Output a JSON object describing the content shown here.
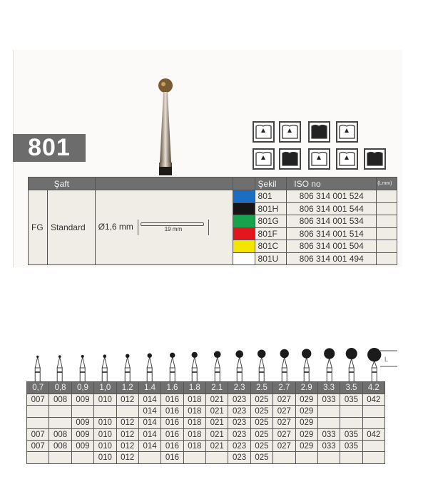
{
  "product_code": "801",
  "colors": {
    "panel_header": "#6f6f6f",
    "cell_bg": "#f0ede7"
  },
  "icons": [
    "cavity-preparation-icon",
    "orthodontic-bracket-icon",
    "root-canal-icon",
    "crown-prep-icon",
    "occlusal-fissure-icon",
    "crown-icon",
    "surgical-instrument-icon",
    "bridge-icon",
    "implant-icon"
  ],
  "spec_table": {
    "header": {
      "shaft": "Şaft",
      "shape": "Şekil",
      "iso": "ISO no",
      "length": "(Lmm)"
    },
    "shank_type": "FG",
    "shank_length_type": "Standard",
    "diameter": "Ø1,6 mm",
    "length": "19 mm",
    "rows": [
      {
        "color": "#1a6fc4",
        "shape": "801",
        "iso": "806 314 001 524"
      },
      {
        "color": "#151515",
        "shape": "801H",
        "iso": "806 314 001 544"
      },
      {
        "color": "#17a34a",
        "shape": "801G",
        "iso": "806 314 001 534"
      },
      {
        "color": "#e3161d",
        "shape": "801F",
        "iso": "806 314 001 514"
      },
      {
        "color": "#f2e600",
        "shape": "801C",
        "iso": "806 314 001 504"
      },
      {
        "color": "#ffffff",
        "shape": "801U",
        "iso": "806 314 001 494"
      }
    ]
  },
  "size_table": {
    "l_label": "L",
    "sizes": [
      "0,7",
      "0,8",
      "0,9",
      "1,0",
      "1.2",
      "1.4",
      "1.6",
      "1.8",
      "2.1",
      "2.3",
      "2.5",
      "2.7",
      "2.9",
      "3.3",
      "3.5",
      "4.2"
    ],
    "rows": [
      [
        "007",
        "008",
        "009",
        "010",
        "012",
        "014",
        "016",
        "018",
        "021",
        "023",
        "025",
        "027",
        "029",
        "033",
        "035",
        "042"
      ],
      [
        "",
        "",
        "",
        "",
        "",
        "014",
        "016",
        "018",
        "021",
        "023",
        "025",
        "027",
        "029",
        "",
        "",
        ""
      ],
      [
        "",
        "",
        "009",
        "010",
        "012",
        "014",
        "016",
        "018",
        "021",
        "023",
        "025",
        "027",
        "029",
        "",
        "",
        ""
      ],
      [
        "007",
        "008",
        "009",
        "010",
        "012",
        "014",
        "016",
        "018",
        "021",
        "023",
        "025",
        "027",
        "029",
        "033",
        "035",
        "042"
      ],
      [
        "007",
        "008",
        "009",
        "010",
        "012",
        "014",
        "016",
        "018",
        "021",
        "023",
        "025",
        "027",
        "029",
        "033",
        "035",
        ""
      ],
      [
        "",
        "",
        "",
        "010",
        "012",
        "",
        "016",
        "",
        "",
        "023",
        "025",
        "",
        "",
        "",
        "",
        ""
      ]
    ]
  }
}
